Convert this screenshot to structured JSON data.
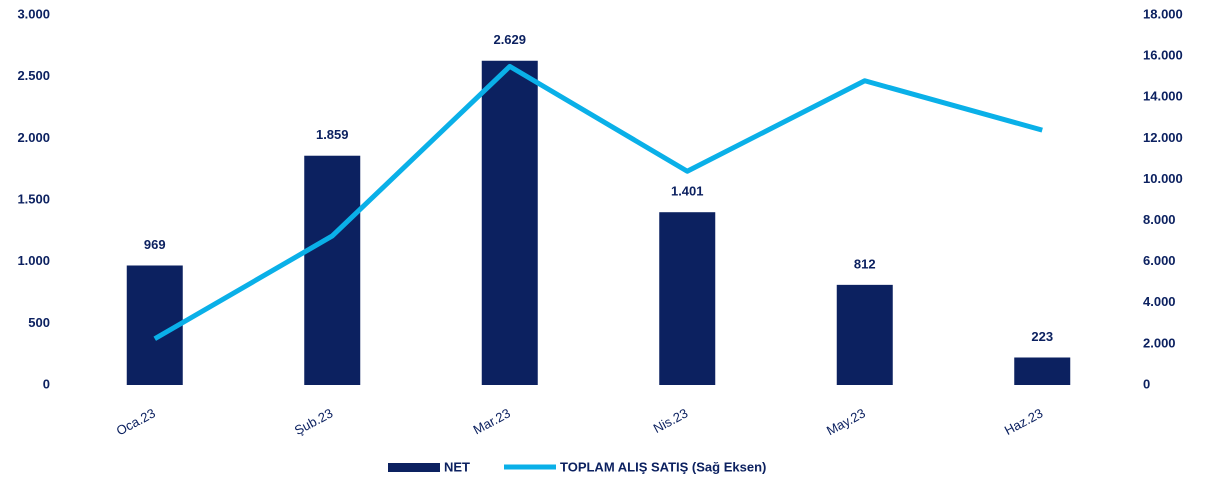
{
  "chart_data": {
    "type": "bar-line",
    "categories": [
      "Oca.23",
      "Şub.23",
      "Mar.23",
      "Nis.23",
      "May.23",
      "Haz.23"
    ],
    "series": [
      {
        "name": "NET",
        "type": "bar",
        "color": "#0c2160",
        "axis": "y",
        "values": [
          969,
          1859,
          2629,
          1401,
          812,
          223
        ],
        "value_labels": [
          "969",
          "1.859",
          "2.629",
          "1.401",
          "812",
          "223"
        ]
      },
      {
        "name": "TOPLAM ALIŞ SATIŞ (Sağ Eksen)",
        "type": "line",
        "color": "#0ab0e8",
        "axis": "y2",
        "values": [
          2250,
          7250,
          15500,
          10400,
          14800,
          12400
        ]
      }
    ],
    "ylim": [
      0,
      3000
    ],
    "yticks": [
      0,
      500,
      {
        "value": 1000,
        "label": "1.000"
      },
      {
        "value": 1500,
        "label": "1.500"
      },
      {
        "value": 2000,
        "label": "2.000"
      },
      {
        "value": 2500,
        "label": "2.500"
      },
      {
        "value": 3000,
        "label": "3.000"
      }
    ],
    "y2lim": [
      0,
      18000
    ],
    "y2ticks": [
      0,
      {
        "value": 2000,
        "label": "2.000"
      },
      {
        "value": 4000,
        "label": "4.000"
      },
      {
        "value": 6000,
        "label": "6.000"
      },
      {
        "value": 8000,
        "label": "8.000"
      },
      {
        "value": 10000,
        "label": "10.000"
      },
      {
        "value": 12000,
        "label": "12.000"
      },
      {
        "value": 14000,
        "label": "14.000"
      },
      {
        "value": 16000,
        "label": "16.000"
      },
      {
        "value": 18000,
        "label": "18.000"
      }
    ],
    "grid": false,
    "legend": "bottom"
  }
}
